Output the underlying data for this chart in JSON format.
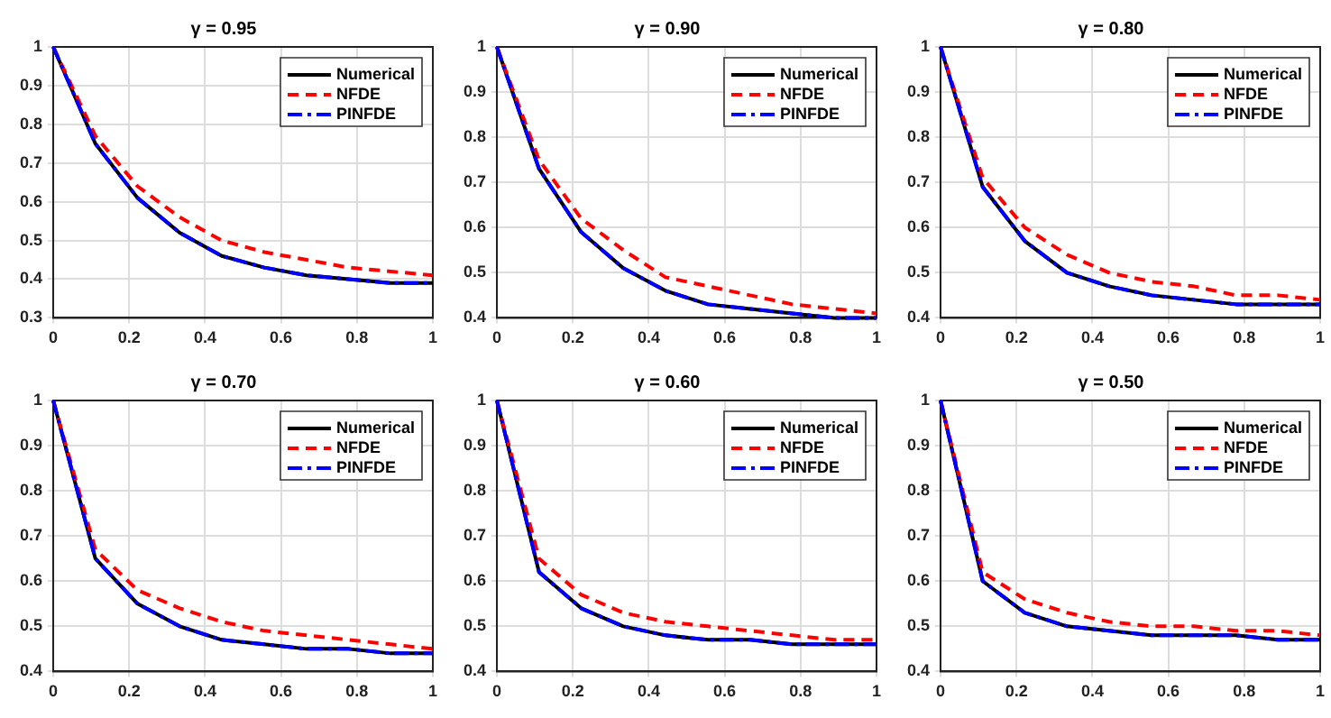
{
  "chart_data": [
    {
      "type": "line",
      "title": "γ = 0.95",
      "x": [
        0,
        0.111,
        0.222,
        0.333,
        0.444,
        0.556,
        0.667,
        0.778,
        0.889,
        1
      ],
      "xlim": [
        0,
        1
      ],
      "xticks": [
        0,
        0.2,
        0.4,
        0.6,
        0.8,
        1
      ],
      "ylim": [
        0.3,
        1
      ],
      "yticks": [
        0.3,
        0.4,
        0.5,
        0.6,
        0.7,
        0.8,
        0.9,
        1
      ],
      "grid": true,
      "legend": "top right",
      "series": [
        {
          "name": "Numerical",
          "color": "#000000",
          "line_style": "solid",
          "values": [
            1,
            0.75,
            0.61,
            0.52,
            0.46,
            0.43,
            0.41,
            0.4,
            0.39,
            0.39
          ]
        },
        {
          "name": "NFDE",
          "color": "#ff0000",
          "line_style": "dashed",
          "values": [
            1,
            0.77,
            0.64,
            0.56,
            0.5,
            0.47,
            0.45,
            0.43,
            0.42,
            0.41
          ]
        },
        {
          "name": "PINFDE",
          "color": "#0000ff",
          "line_style": "dashdot",
          "values": [
            1,
            0.75,
            0.61,
            0.52,
            0.46,
            0.43,
            0.41,
            0.4,
            0.39,
            0.39
          ]
        }
      ]
    },
    {
      "type": "line",
      "title": "γ = 0.90",
      "x": [
        0,
        0.111,
        0.222,
        0.333,
        0.444,
        0.556,
        0.667,
        0.778,
        0.889,
        1
      ],
      "xlim": [
        0,
        1
      ],
      "xticks": [
        0,
        0.2,
        0.4,
        0.6,
        0.8,
        1
      ],
      "ylim": [
        0.4,
        1
      ],
      "yticks": [
        0.4,
        0.5,
        0.6,
        0.7,
        0.8,
        0.9,
        1
      ],
      "grid": true,
      "legend": "top right",
      "series": [
        {
          "name": "Numerical",
          "color": "#000000",
          "line_style": "solid",
          "values": [
            1,
            0.73,
            0.59,
            0.51,
            0.46,
            0.43,
            0.42,
            0.41,
            0.4,
            0.4
          ]
        },
        {
          "name": "NFDE",
          "color": "#ff0000",
          "line_style": "dashed",
          "values": [
            1,
            0.75,
            0.62,
            0.55,
            0.49,
            0.47,
            0.45,
            0.43,
            0.42,
            0.41
          ]
        },
        {
          "name": "PINFDE",
          "color": "#0000ff",
          "line_style": "dashdot",
          "values": [
            1,
            0.73,
            0.59,
            0.51,
            0.46,
            0.43,
            0.42,
            0.41,
            0.4,
            0.4
          ]
        }
      ]
    },
    {
      "type": "line",
      "title": "γ = 0.80",
      "x": [
        0,
        0.111,
        0.222,
        0.333,
        0.444,
        0.556,
        0.667,
        0.778,
        0.889,
        1
      ],
      "xlim": [
        0,
        1
      ],
      "xticks": [
        0,
        0.2,
        0.4,
        0.6,
        0.8,
        1
      ],
      "ylim": [
        0.4,
        1
      ],
      "yticks": [
        0.4,
        0.5,
        0.6,
        0.7,
        0.8,
        0.9,
        1
      ],
      "grid": true,
      "legend": "top right",
      "series": [
        {
          "name": "Numerical",
          "color": "#000000",
          "line_style": "solid",
          "values": [
            1,
            0.69,
            0.57,
            0.5,
            0.47,
            0.45,
            0.44,
            0.43,
            0.43,
            0.43
          ]
        },
        {
          "name": "NFDE",
          "color": "#ff0000",
          "line_style": "dashed",
          "values": [
            1,
            0.71,
            0.6,
            0.54,
            0.5,
            0.48,
            0.47,
            0.45,
            0.45,
            0.44
          ]
        },
        {
          "name": "PINFDE",
          "color": "#0000ff",
          "line_style": "dashdot",
          "values": [
            1,
            0.69,
            0.57,
            0.5,
            0.47,
            0.45,
            0.44,
            0.43,
            0.43,
            0.43
          ]
        }
      ]
    },
    {
      "type": "line",
      "title": "γ = 0.70",
      "x": [
        0,
        0.111,
        0.222,
        0.333,
        0.444,
        0.556,
        0.667,
        0.778,
        0.889,
        1
      ],
      "xlim": [
        0,
        1
      ],
      "xticks": [
        0,
        0.2,
        0.4,
        0.6,
        0.8,
        1
      ],
      "ylim": [
        0.4,
        1
      ],
      "yticks": [
        0.4,
        0.5,
        0.6,
        0.7,
        0.8,
        0.9,
        1
      ],
      "grid": true,
      "legend": "top right",
      "series": [
        {
          "name": "Numerical",
          "color": "#000000",
          "line_style": "solid",
          "values": [
            1,
            0.65,
            0.55,
            0.5,
            0.47,
            0.46,
            0.45,
            0.45,
            0.44,
            0.44
          ]
        },
        {
          "name": "NFDE",
          "color": "#ff0000",
          "line_style": "dashed",
          "values": [
            1,
            0.67,
            0.58,
            0.54,
            0.51,
            0.49,
            0.48,
            0.47,
            0.46,
            0.45
          ]
        },
        {
          "name": "PINFDE",
          "color": "#0000ff",
          "line_style": "dashdot",
          "values": [
            1,
            0.65,
            0.55,
            0.5,
            0.47,
            0.46,
            0.45,
            0.45,
            0.44,
            0.44
          ]
        }
      ]
    },
    {
      "type": "line",
      "title": "γ = 0.60",
      "x": [
        0,
        0.111,
        0.222,
        0.333,
        0.444,
        0.556,
        0.667,
        0.778,
        0.889,
        1
      ],
      "xlim": [
        0,
        1
      ],
      "xticks": [
        0,
        0.2,
        0.4,
        0.6,
        0.8,
        1
      ],
      "ylim": [
        0.4,
        1
      ],
      "yticks": [
        0.4,
        0.5,
        0.6,
        0.7,
        0.8,
        0.9,
        1
      ],
      "grid": true,
      "legend": "top right",
      "series": [
        {
          "name": "Numerical",
          "color": "#000000",
          "line_style": "solid",
          "values": [
            1,
            0.62,
            0.54,
            0.5,
            0.48,
            0.47,
            0.47,
            0.46,
            0.46,
            0.46
          ]
        },
        {
          "name": "NFDE",
          "color": "#ff0000",
          "line_style": "dashed",
          "values": [
            1,
            0.65,
            0.57,
            0.53,
            0.51,
            0.5,
            0.49,
            0.48,
            0.47,
            0.47
          ]
        },
        {
          "name": "PINFDE",
          "color": "#0000ff",
          "line_style": "dashdot",
          "values": [
            1,
            0.62,
            0.54,
            0.5,
            0.48,
            0.47,
            0.47,
            0.46,
            0.46,
            0.46
          ]
        }
      ]
    },
    {
      "type": "line",
      "title": "γ = 0.50",
      "x": [
        0,
        0.111,
        0.222,
        0.333,
        0.444,
        0.556,
        0.667,
        0.778,
        0.889,
        1
      ],
      "xlim": [
        0,
        1
      ],
      "xticks": [
        0,
        0.2,
        0.4,
        0.6,
        0.8,
        1
      ],
      "ylim": [
        0.4,
        1
      ],
      "yticks": [
        0.4,
        0.5,
        0.6,
        0.7,
        0.8,
        0.9,
        1
      ],
      "grid": true,
      "legend": "top right",
      "series": [
        {
          "name": "Numerical",
          "color": "#000000",
          "line_style": "solid",
          "values": [
            1,
            0.6,
            0.53,
            0.5,
            0.49,
            0.48,
            0.48,
            0.48,
            0.47,
            0.47
          ]
        },
        {
          "name": "NFDE",
          "color": "#ff0000",
          "line_style": "dashed",
          "values": [
            1,
            0.62,
            0.56,
            0.53,
            0.51,
            0.5,
            0.5,
            0.49,
            0.49,
            0.48
          ]
        },
        {
          "name": "PINFDE",
          "color": "#0000ff",
          "line_style": "dashdot",
          "values": [
            1,
            0.6,
            0.53,
            0.5,
            0.49,
            0.48,
            0.48,
            0.48,
            0.47,
            0.47
          ]
        }
      ]
    }
  ]
}
